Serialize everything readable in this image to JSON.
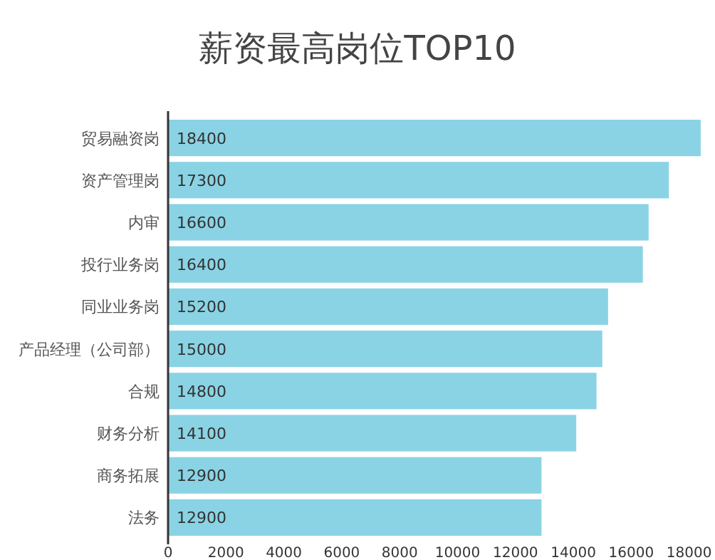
{
  "chart_data": {
    "type": "bar",
    "orientation": "horizontal",
    "title": "薪资最高岗位TOP10",
    "categories": [
      "贸易融资岗",
      "资产管理岗",
      "内审",
      "投行业务岗",
      "同业业务岗",
      "产品经理（公司部）",
      "合规",
      "财务分析",
      "商务拓展",
      "法务"
    ],
    "values": [
      18400,
      17300,
      16600,
      16400,
      15200,
      15000,
      14800,
      14100,
      12900,
      12900
    ],
    "color": "#8ad3e4",
    "data_labels": true,
    "xlim": [
      0,
      18500
    ],
    "xticks": [
      0,
      2000,
      4000,
      6000,
      8000,
      10000,
      12000,
      14000,
      16000,
      18000
    ],
    "grid": false
  }
}
